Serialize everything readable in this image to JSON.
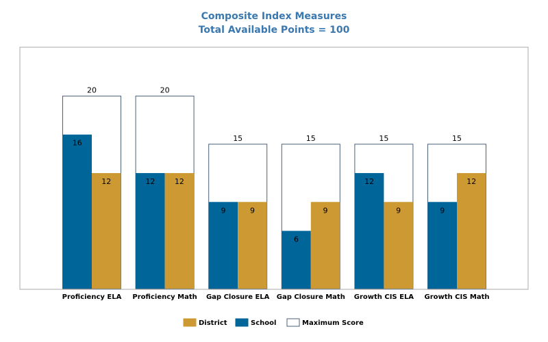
{
  "chart_data": {
    "type": "bar",
    "title": "Composite Index Measures",
    "subtitle": "Total Available Points = 100",
    "xlabel": "",
    "ylabel": "",
    "ylim": [
      0,
      25
    ],
    "grid": false,
    "legend_position": "bottom",
    "categories": [
      "Proficiency ELA",
      "Proficiency Math",
      "Gap Closure ELA",
      "Gap Closure Math",
      "Growth CIS ELA",
      "Growth CIS Math"
    ],
    "series": [
      {
        "name": "Maximum Score",
        "values": [
          20,
          20,
          15,
          15,
          15,
          15
        ],
        "color": "#ffffff",
        "stroke": "#4a5f7a"
      },
      {
        "name": "School",
        "values": [
          16,
          12,
          9,
          6,
          12,
          9
        ],
        "color": "#006699"
      },
      {
        "name": "District",
        "values": [
          12,
          12,
          9,
          9,
          9,
          12
        ],
        "color": "#cc9933"
      }
    ],
    "legend_order": [
      "District",
      "School",
      "Maximum Score"
    ]
  }
}
